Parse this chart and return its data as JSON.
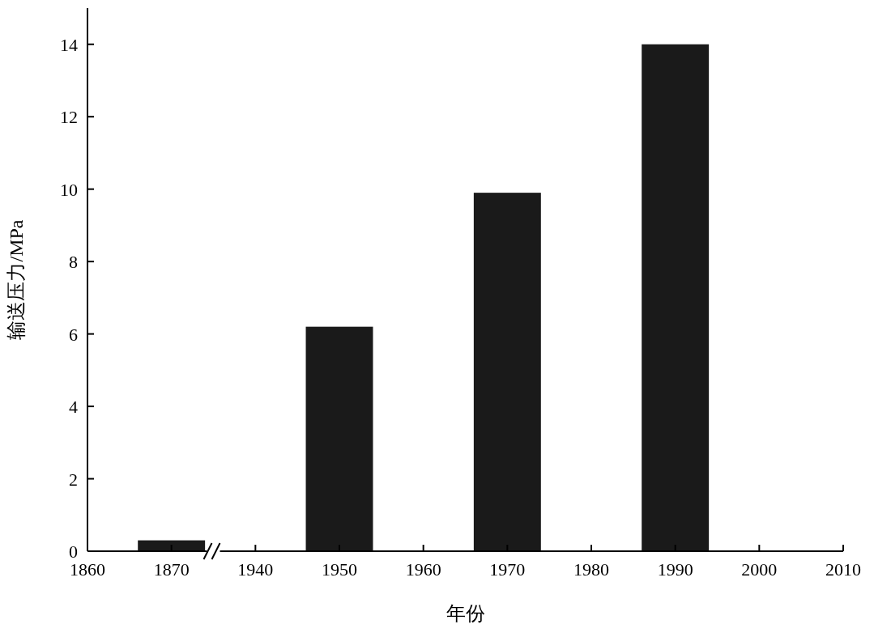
{
  "chart_data": {
    "type": "bar",
    "xlabel": "年份",
    "ylabel": "输送压力/MPa",
    "categories": [
      "1860",
      "1870",
      "1940",
      "1950",
      "1960",
      "1970",
      "1980",
      "1990",
      "2000",
      "2010"
    ],
    "values": [
      null,
      0.3,
      null,
      6.2,
      null,
      9.9,
      null,
      14.0,
      null,
      null
    ],
    "color": "#1a1a1a",
    "ylim": [
      0,
      15
    ],
    "yticks": [
      0,
      2,
      4,
      6,
      8,
      10,
      12,
      14
    ]
  }
}
